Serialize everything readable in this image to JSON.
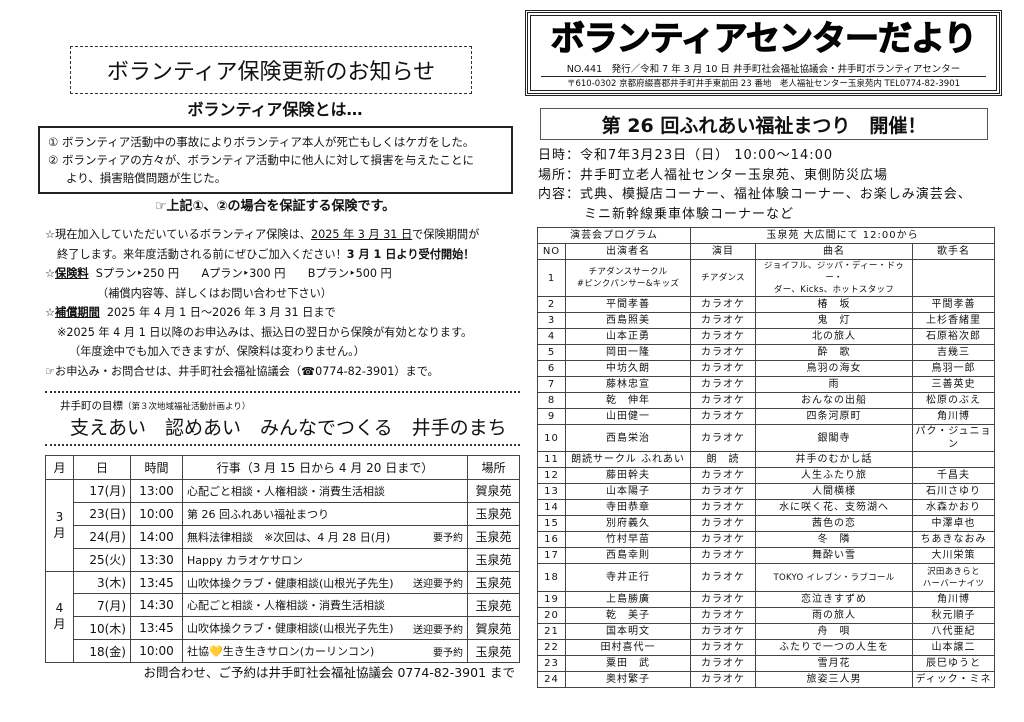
{
  "insurance": {
    "title": "ボランティア保険更新のお知らせ",
    "subtitle": "ボランティア保険とは…",
    "cases": [
      "① ボランティア活動中の事故によりボランティア本人が死亡もしくはケガをした。",
      "② ボランティアの方々が、ボランティア活動中に他人に対して損害を与えたことに",
      "より、損害賠償問題が生じた。"
    ],
    "guarantee": "☞上記①、②の場合を保証する保険です。",
    "line1_a": "☆現在加入していただいているボランティア保険は、",
    "line1_date": "2025 年 3 月 31 日",
    "line1_b": "で保険期間が",
    "line2_a": "終了します。来年度活動される前にぜひご加入ください！",
    "line2_b": "3 月 1 日より受付開始！",
    "fee_label": "保険料",
    "fees": "Sプラン‣250 円　　Aプラン‣300 円　　Bプラン‣500 円",
    "fee_note": "（補償内容等、詳しくはお問い合わせ下さい）",
    "period_label": "補償期間",
    "period": "2025 年 4 月 1 日～2026 年 3 月 31 日まで",
    "note1": "※2025 年 4 月 1 日以降のお申込みは、振込日の翌日から保険が有効となります。",
    "note2": "（年度途中でも加入できますが、保険料は変わりません。）",
    "contact": "☞お申込み・お問合せは、井手町社会福祉協議会（☎0774-82-3901）まで。"
  },
  "goal": {
    "label": "井手町の目標",
    "source": "（第３次地域福祉活動計画より）",
    "slogan": "支えあい　認めあい　みんなでつくる　井手のまち"
  },
  "schedule": {
    "headers": [
      "月",
      "日",
      "時間",
      "行事（3 月 15 日から 4 月 20 日まで）",
      "場所"
    ],
    "months": [
      {
        "label": "3月",
        "rows": [
          {
            "day": "17(月)",
            "time": "13:00",
            "event": "心配ごと相談・人権相談・消費生活相談",
            "note": "",
            "place": "賀泉苑"
          },
          {
            "day": "23(日)",
            "time": "10:00",
            "event": "第 26 回ふれあい福祉まつり",
            "note": "",
            "place": "玉泉苑"
          },
          {
            "day": "24(月)",
            "time": "14:00",
            "event": "無料法律相談　※次回は、4 月 28 日(月)",
            "note": "要予約",
            "place": "玉泉苑"
          },
          {
            "day": "25(火)",
            "time": "13:30",
            "event": "Happy カラオケサロン",
            "note": "",
            "place": "玉泉苑"
          }
        ]
      },
      {
        "label": "4月",
        "rows": [
          {
            "day": "3(木)",
            "time": "13:45",
            "event": "山吹体操クラブ・健康相談(山根光子先生)",
            "note": "送迎要予約",
            "place": "玉泉苑"
          },
          {
            "day": "7(月)",
            "time": "14:30",
            "event": "心配ごと相談・人権相談・消費生活相談",
            "note": "",
            "place": "玉泉苑"
          },
          {
            "day": "10(木)",
            "time": "13:45",
            "event": "山吹体操クラブ・健康相談(山根光子先生)",
            "note": "送迎要予約",
            "place": "賀泉苑"
          },
          {
            "day": "18(金)",
            "time": "10:00",
            "event": "社協💛生き生きサロン(カーリンコン)",
            "note": "要予約",
            "place": "玉泉苑"
          }
        ]
      }
    ],
    "footer": "お問合わせ、ご予約は井手町社会福祉協議会 0774-82-3901 まで"
  },
  "header": {
    "title": "ボランティアセンターだより",
    "issue": "NO.441　発行／令和 7 年 3 月 10 日  井手町社会福祉協議会・井手町ボランティアセンター",
    "address": "〒610-0302 京都府綴喜郡井手町井手東前田 23 番地　老人福祉センター玉泉苑内 TEL0774-82-3901"
  },
  "festival": {
    "title": "第 26 回ふれあい福祉まつり　開催！",
    "datetime": "日時：令和7年3月23日（日） 10:00～14:00",
    "place": "場所：井手町立老人福祉センター玉泉苑、東側防災広場",
    "content1": "内容：式典、模擬店コーナー、福祉体験コーナー、お楽しみ演芸会、",
    "content2": "ミニ新幹線乗車体験コーナーなど"
  },
  "program": {
    "title": "演芸会プログラム",
    "venue": "玉泉苑 大広間にて 12:00から",
    "headers": [
      "NO",
      "出演者名",
      "演目",
      "曲名",
      "歌手名"
    ],
    "rows": [
      [
        "1",
        "チアダンスサークル\n#ピンクパンサー&キッズ",
        "チアダンス",
        "ジョイフル、ジッパ・ディー・ドゥー・\nダー、Kicks、ホットスタッフ",
        ""
      ],
      [
        "2",
        "平間孝善",
        "カラオケ",
        "椿　坂",
        "平間孝善"
      ],
      [
        "3",
        "西島照美",
        "カラオケ",
        "鬼　灯",
        "上杉香緒里"
      ],
      [
        "4",
        "山本正勇",
        "カラオケ",
        "北の旅人",
        "石原裕次郎"
      ],
      [
        "5",
        "岡田一隆",
        "カラオケ",
        "酔　歌",
        "吉幾三"
      ],
      [
        "6",
        "中坊久朗",
        "カラオケ",
        "鳥羽の海女",
        "鳥羽一郎"
      ],
      [
        "7",
        "藤林忠宣",
        "カラオケ",
        "雨",
        "三善英史"
      ],
      [
        "8",
        "乾　伸年",
        "カラオケ",
        "おんなの出船",
        "松原のぶえ"
      ],
      [
        "9",
        "山田健一",
        "カラオケ",
        "四条河原町",
        "角川博"
      ],
      [
        "10",
        "西島栄治",
        "カラオケ",
        "銀閣寺",
        "パク・ジュニョン"
      ],
      [
        "11",
        "朗読サークル ふれあい",
        "朗　読",
        "井手のむかし話",
        ""
      ],
      [
        "12",
        "藤田幹夫",
        "カラオケ",
        "人生ふたり旅",
        "千昌夫"
      ],
      [
        "13",
        "山本陽子",
        "カラオケ",
        "人間横様",
        "石川さゆり"
      ],
      [
        "14",
        "寺田恭章",
        "カラオケ",
        "水に咲く花、支笏湖へ",
        "水森かおり"
      ],
      [
        "15",
        "別府義久",
        "カラオケ",
        "茜色の恋",
        "中澤卓也"
      ],
      [
        "16",
        "竹村早苗",
        "カラオケ",
        "冬　隣",
        "ちあきなおみ"
      ],
      [
        "17",
        "西島幸則",
        "カラオケ",
        "舞酔い雪",
        "大川栄策"
      ],
      [
        "18",
        "寺井正行",
        "カラオケ",
        "TOKYO イレブン・ラブコール",
        "沢田あきらと\nハーバーナイツ"
      ],
      [
        "19",
        "上島勝廣",
        "カラオケ",
        "恋泣きすずめ",
        "角川博"
      ],
      [
        "20",
        "乾　美子",
        "カラオケ",
        "雨の旅人",
        "秋元順子"
      ],
      [
        "21",
        "国本明文",
        "カラオケ",
        "舟　唄",
        "八代亜紀"
      ],
      [
        "22",
        "田村喜代一",
        "カラオケ",
        "ふたりで一つの人生を",
        "山本譲二"
      ],
      [
        "23",
        "粟田　武",
        "カラオケ",
        "雪月花",
        "辰巳ゆうと"
      ],
      [
        "24",
        "奥村繁子",
        "カラオケ",
        "旅姿三人男",
        "ディック・ミネ"
      ]
    ]
  }
}
